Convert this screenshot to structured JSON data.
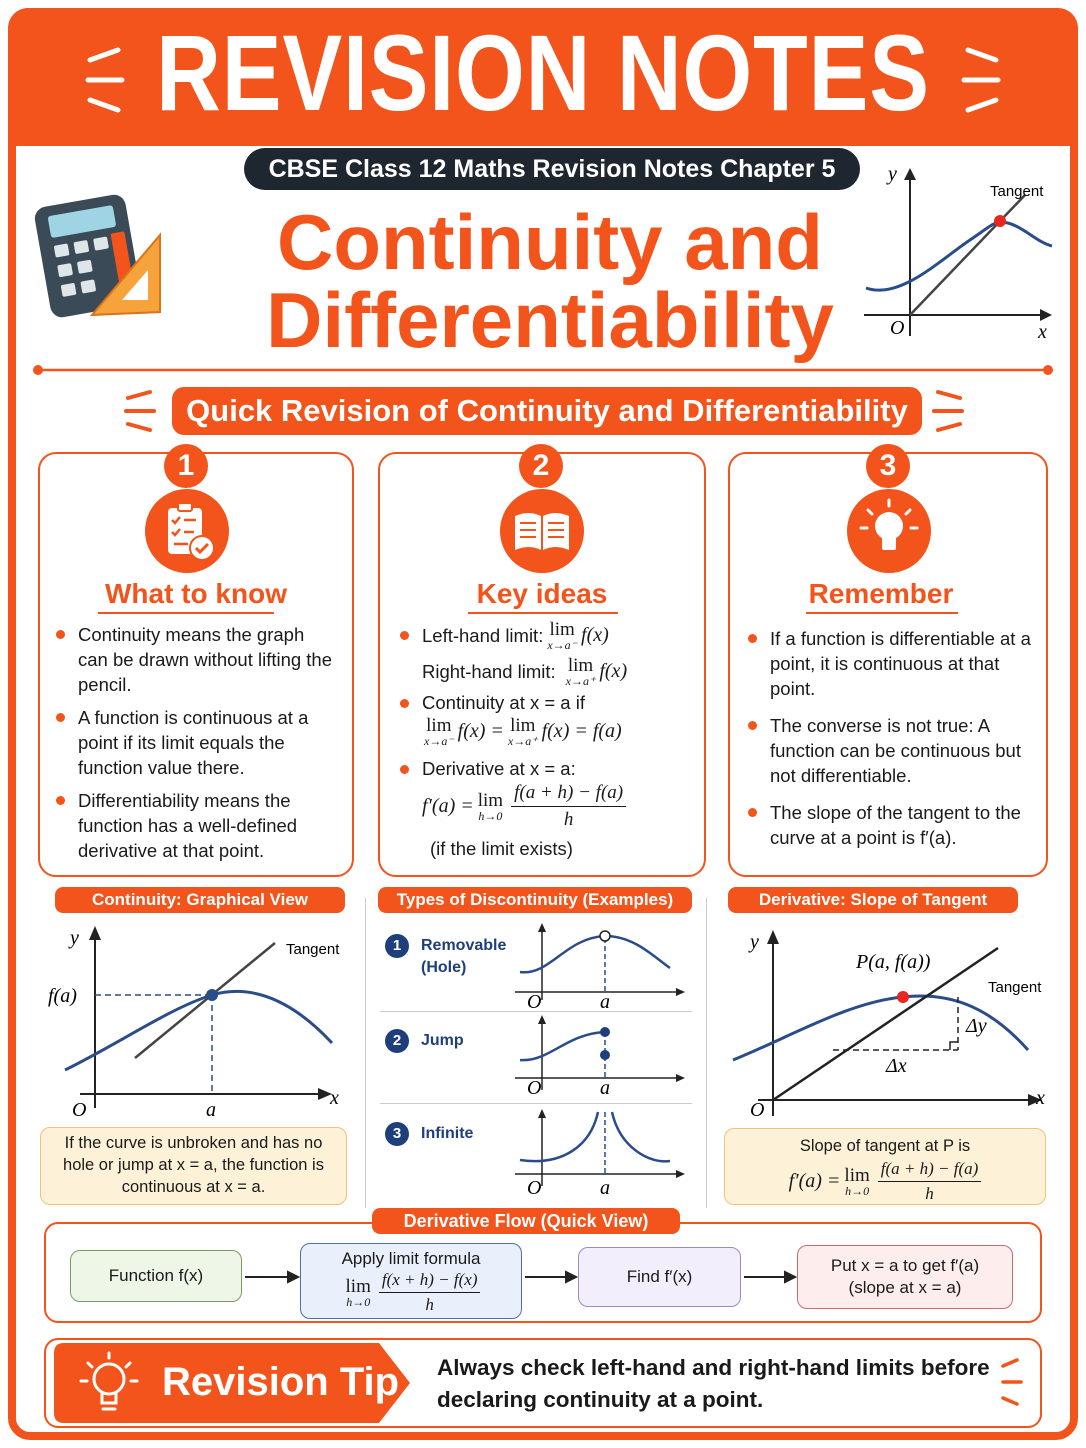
{
  "header": {
    "title": "REVISION NOTES",
    "badge": "CBSE Class 12 Maths Revision Notes Chapter 5",
    "heading": [
      "Continuity and",
      "Differentiability"
    ],
    "graph": {
      "y": "y",
      "x": "x",
      "origin": "O",
      "tangent": "Tangent"
    }
  },
  "section_title": "Quick Revision of Continuity and Differentiability",
  "cards": [
    {
      "number": "1",
      "title": "What to know",
      "bullets": [
        "Continuity means the graph can be drawn without lifting the pencil.",
        "A function is continuous at a point if its limit equals the function value there.",
        "Differentiability means the function has a well-defined derivative at that point."
      ]
    },
    {
      "number": "2",
      "title": "Key ideas",
      "left_limit": {
        "label": "Left-hand limit:",
        "lim": "lim",
        "sub": "x→a⁻",
        "expr": "f(x)"
      },
      "right_limit": {
        "label": "Right-hand limit:",
        "lim": "lim",
        "sub": "x→a⁺",
        "expr": "f(x)"
      },
      "continuity": {
        "label": "Continuity at x = a if",
        "lim1": "lim",
        "sub1": "x→a⁻",
        "expr1": "f(x) =",
        "lim2": "lim",
        "sub2": "x→a⁺",
        "expr2": "f(x) = f(a)"
      },
      "derivative": {
        "label": "Derivative at x = a:",
        "lhs": "f′(a) =",
        "lim": "lim",
        "sub": "h→0",
        "num": "f(a + h) − f(a)",
        "den": "h"
      },
      "note": "(if the limit exists)"
    },
    {
      "number": "3",
      "title": "Remember",
      "bullets": [
        "If a function is differentiable at a point, it is continuous at that point.",
        "The converse is not true: A function can be continuous but not differentiable.",
        "The slope of the tangent to the curve at a point is f′(a)."
      ]
    }
  ],
  "panels": {
    "continuity_graph": {
      "title": "Continuity: Graphical View",
      "y": "y",
      "x": "x",
      "origin": "O",
      "fa": "f(a)",
      "a": "a",
      "tangent": "Tangent",
      "caption": "If the curve is unbroken and has no hole or jump at x = a, the function is continuous at x = a."
    },
    "discontinuity": {
      "title": "Types of Discontinuity (Examples)",
      "types": [
        {
          "number": "1",
          "label": "Removable (Hole)",
          "origin": "O",
          "a": "a"
        },
        {
          "number": "2",
          "label": "Jump",
          "origin": "O",
          "a": "a"
        },
        {
          "number": "3",
          "label": "Infinite",
          "origin": "O",
          "a": "a"
        }
      ]
    },
    "tangent_slope": {
      "title": "Derivative: Slope of Tangent",
      "y": "y",
      "x": "x",
      "origin": "O",
      "point": "P(a, f(a))",
      "tangent": "Tangent",
      "dx": "Δx",
      "dy": "Δy",
      "caption": "Slope of tangent at P is",
      "formula": {
        "lhs": "f′(a) =",
        "lim": "lim",
        "sub": "h→0",
        "num": "f(a + h) − f(a)",
        "den": "h"
      }
    }
  },
  "flow": {
    "title": "Derivative Flow (Quick View)",
    "steps": [
      {
        "text": "Function f(x)"
      },
      {
        "text": "Apply limit formula",
        "lim": "lim",
        "sub": "h→0",
        "num": "f(x + h) − f(x)",
        "den": "h"
      },
      {
        "text": "Find f′(x)"
      },
      {
        "lines": [
          "Put x = a to get f′(a)",
          "(slope at x = a)"
        ]
      }
    ]
  },
  "tip": {
    "title": "Revision Tip",
    "text": "Always check left-hand and right-hand limits before declaring continuity at a point."
  }
}
